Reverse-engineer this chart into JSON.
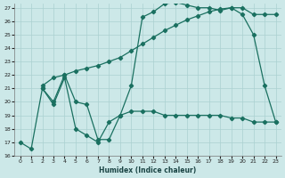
{
  "xlabel": "Humidex (Indice chaleur)",
  "background_color": "#cce8e8",
  "grid_color": "#aad0d0",
  "line_color": "#1a7060",
  "xmin": 0,
  "xmax": 23,
  "ymin": 16,
  "ymax": 27,
  "curve1_x": [
    0,
    1,
    2,
    3,
    4,
    5,
    6,
    7,
    8,
    9,
    10,
    11,
    12,
    13,
    14,
    15,
    16,
    17,
    18,
    19,
    20,
    21,
    22,
    23
  ],
  "curve1_y": [
    17.0,
    16.5,
    21.0,
    19.8,
    21.8,
    18.0,
    17.5,
    17.0,
    18.5,
    19.0,
    19.3,
    19.3,
    19.3,
    19.0,
    19.0,
    19.0,
    19.0,
    19.0,
    19.0,
    18.8,
    18.8,
    18.5,
    18.5,
    18.5
  ],
  "curve2_x": [
    2,
    3,
    4,
    5,
    6,
    7,
    8,
    9,
    10,
    11,
    12,
    13,
    14,
    15,
    16,
    17,
    18,
    19,
    20,
    21,
    22,
    23
  ],
  "curve2_y": [
    21.0,
    20.0,
    22.0,
    20.0,
    19.8,
    17.2,
    17.2,
    19.0,
    21.2,
    26.3,
    26.7,
    27.3,
    27.4,
    27.2,
    27.0,
    27.0,
    26.8,
    27.0,
    26.5,
    25.0,
    21.2,
    18.5
  ],
  "curve3_x": [
    2,
    3,
    4,
    5,
    6,
    7,
    8,
    9,
    10,
    11,
    12,
    13,
    14,
    15,
    16,
    17,
    18,
    19,
    20,
    21,
    22,
    23
  ],
  "curve3_y": [
    21.2,
    21.8,
    22.0,
    22.3,
    22.5,
    22.7,
    23.0,
    23.3,
    23.8,
    24.3,
    24.8,
    25.3,
    25.7,
    26.1,
    26.4,
    26.7,
    26.9,
    27.0,
    27.0,
    26.5,
    26.5,
    26.5
  ]
}
